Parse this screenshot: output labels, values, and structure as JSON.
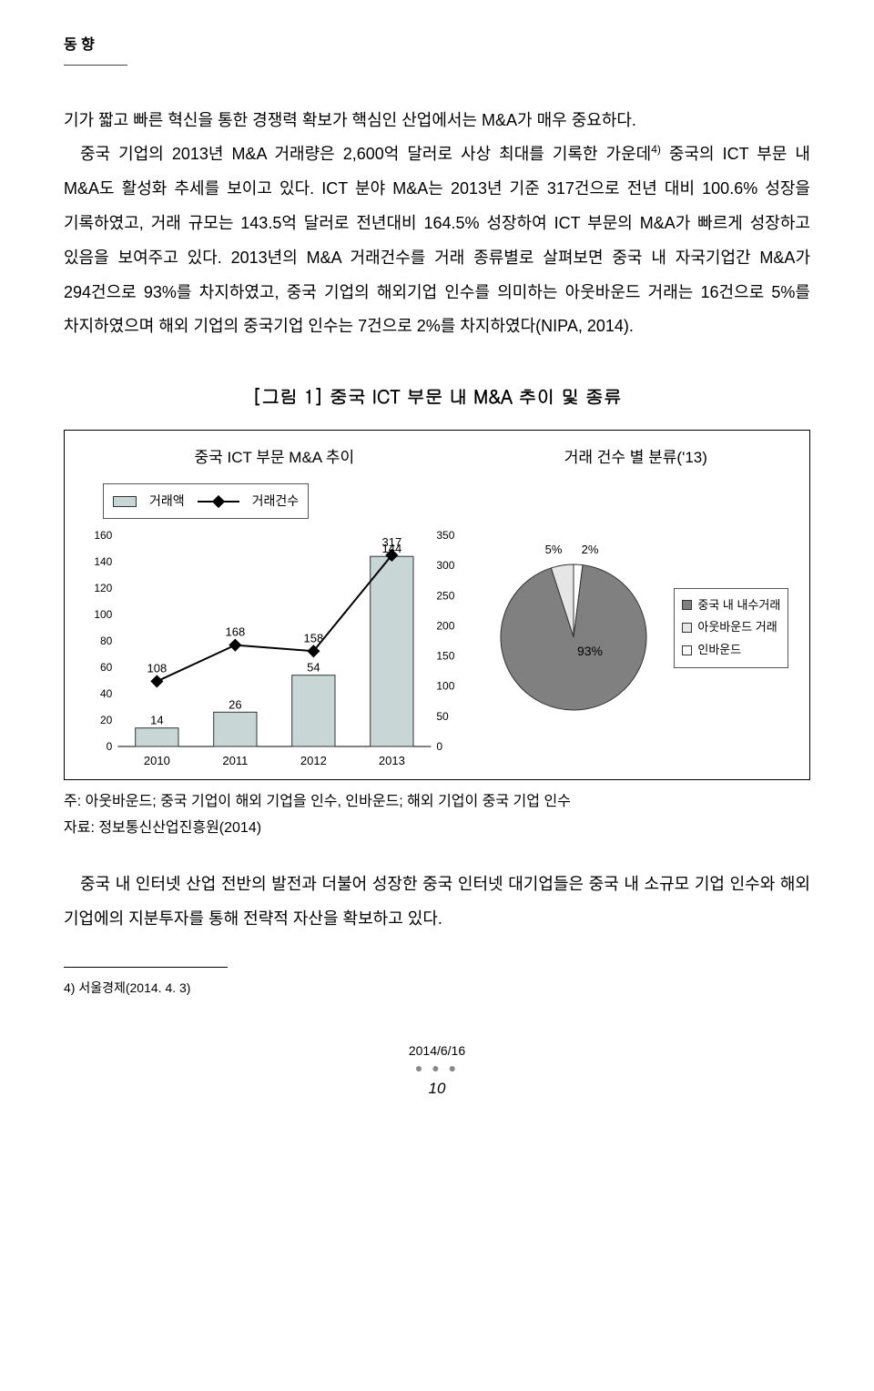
{
  "header": {
    "section_label": "동 향"
  },
  "body": {
    "p1": "기가 짧고 빠른 혁신을 통한 경쟁력 확보가 핵심인 산업에서는 M&A가 매우 중요하다.",
    "p2a": "중국 기업의 2013년 M&A 거래량은 2,600억 달러로 사상 최대를 기록한 가운데",
    "p2sup": "4)",
    "p2b": " 중국의 ICT 부문 내 M&A도 활성화 추세를 보이고 있다. ICT 분야 M&A는 2013년 기준 317건으로 전년 대비 100.6% 성장을 기록하였고, 거래 규모는 143.5억 달러로 전년대비 164.5% 성장하여 ICT 부문의 M&A가 빠르게 성장하고 있음을 보여주고 있다. 2013년의 M&A 거래건수를 거래 종류별로 살펴보면 중국 내 자국기업간 M&A가 294건으로 93%를 차지하였고, 중국 기업의 해외기업 인수를 의미하는 아웃바운드 거래는 16건으로 5%를 차지하였으며 해외 기업의 중국기업 인수는 7건으로 2%를 차지하였다(NIPA, 2014)."
  },
  "figure": {
    "title": "[그림 1] 중국 ICT 부문 내 M&A 추이 및 종류",
    "left_subtitle": "중국 ICT 부문 M&A 추이",
    "right_subtitle": "거래 건수 별 분류('13)",
    "bar_legend": {
      "bars": "거래액",
      "line": "거래건수"
    },
    "bar_chart": {
      "categories": [
        "2010",
        "2011",
        "2012",
        "2013"
      ],
      "bar_values": [
        14,
        26,
        54,
        144
      ],
      "line_values": [
        108,
        168,
        158,
        317
      ],
      "bar_color": "#c9d6d6",
      "bar_border": "#333333",
      "line_color": "#000000",
      "left_ylim": [
        0,
        160
      ],
      "left_ytick_step": 20,
      "right_ylim": [
        0,
        350
      ],
      "right_ytick_step": 50,
      "background": "#ffffff"
    },
    "pie_chart": {
      "slices": [
        {
          "label": "중국 내 내수거래",
          "value": 93,
          "color": "#808080",
          "text": "93%"
        },
        {
          "label": "아웃바운드 거래",
          "value": 5,
          "color": "#e6e6e6",
          "text": "5%"
        },
        {
          "label": "인바운드",
          "value": 2,
          "color": "#ffffff",
          "text": "2%"
        }
      ]
    },
    "note1": "주: 아웃바운드; 중국 기업이 해외 기업을 인수, 인바운드; 해외 기업이 중국 기업 인수",
    "note2": "자료: 정보통신산업진흥원(2014)"
  },
  "body2": {
    "p3": "중국 내 인터넷 산업 전반의 발전과 더불어 성장한 중국 인터넷 대기업들은 중국 내 소규모 기업 인수와 해외 기업에의 지분투자를 통해 전략적 자산을 확보하고 있다."
  },
  "footnote": {
    "text": "4) 서울경제(2014. 4. 3)"
  },
  "footer": {
    "date": "2014/6/16",
    "page": "10"
  }
}
